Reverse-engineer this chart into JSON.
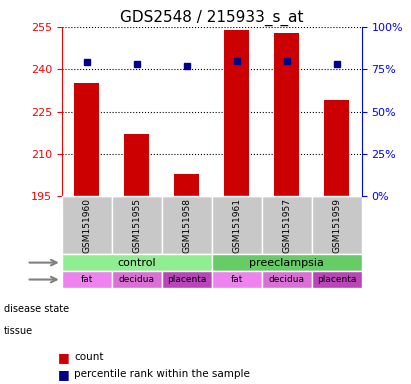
{
  "title": "GDS2548 / 215933_s_at",
  "samples": [
    "GSM151960",
    "GSM151955",
    "GSM151958",
    "GSM151961",
    "GSM151957",
    "GSM151959"
  ],
  "counts": [
    235,
    217,
    203,
    254,
    253,
    229
  ],
  "percentile_ranks": [
    79,
    78,
    77,
    80,
    80,
    78
  ],
  "left_ylim": [
    195,
    255
  ],
  "left_yticks": [
    195,
    210,
    225,
    240,
    255
  ],
  "right_ylim": [
    0,
    100
  ],
  "right_yticks": [
    0,
    25,
    50,
    75,
    100
  ],
  "disease_states": [
    "control",
    "control",
    "control",
    "preeclampsia",
    "preeclampsia",
    "preeclampsia"
  ],
  "tissues": [
    "fat",
    "decidua",
    "placenta",
    "fat",
    "decidua",
    "placenta"
  ],
  "disease_colors": {
    "control": "#90EE90",
    "preeclampsia": "#66CC66"
  },
  "tissue_colors": {
    "fat": "#EE82EE",
    "decidua": "#DA70D6",
    "placenta": "#CC55CC"
  },
  "bar_color": "#CC0000",
  "dot_color": "#00008B",
  "sample_bg_color": "#C8C8C8",
  "title_fontsize": 11,
  "tick_fontsize": 8,
  "label_fontsize": 8,
  "legend_fontsize": 8
}
